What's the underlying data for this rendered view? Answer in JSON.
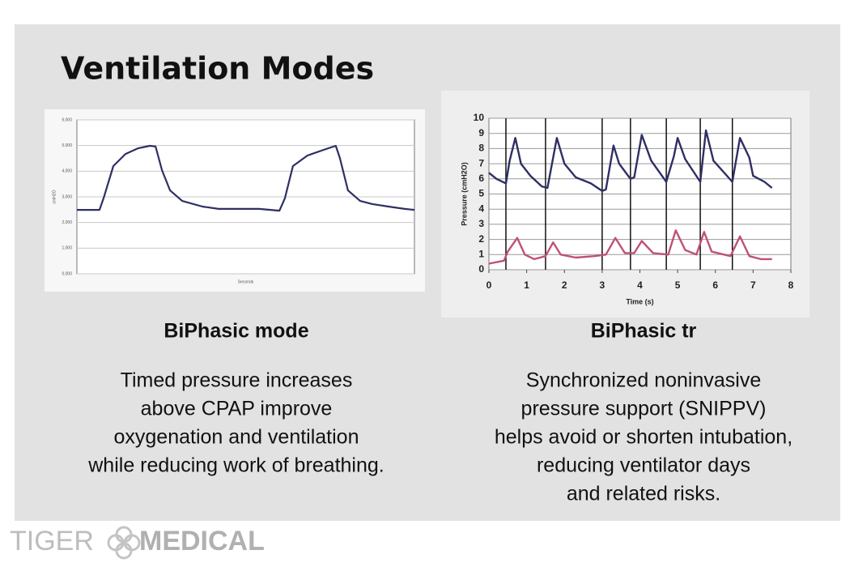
{
  "slide": {
    "title": "Ventilation Modes",
    "panels": [
      {
        "heading": "BiPhasic mode",
        "lines": [
          "Timed pressure increases",
          "above CPAP improve",
          "oxygenation and ventilation",
          "while reducing work of breathing."
        ]
      },
      {
        "heading": "BiPhasic tr",
        "lines": [
          "Synchronized noninvasive",
          "pressure support (SNIPPV)",
          "helps avoid or shorten intubation,",
          "reducing ventilator days",
          "and related risks."
        ]
      }
    ],
    "logo": {
      "left": "TIGER",
      "right": "MEDICAL"
    }
  },
  "chart_data": [
    {
      "type": "line",
      "xlabel": "Seconds",
      "ylabel": "cmH2O",
      "ylim": [
        0,
        6
      ],
      "yticks": [
        {
          "value": 0,
          "label": "0,000"
        },
        {
          "value": 1,
          "label": "1,000"
        },
        {
          "value": 2,
          "label": "2,000"
        },
        {
          "value": 3,
          "label": "3,000"
        },
        {
          "value": 4,
          "label": "4,000"
        },
        {
          "value": 5,
          "label": "5,000"
        },
        {
          "value": 6,
          "label": "6,000"
        }
      ],
      "xlim": [
        0,
        100
      ],
      "grid": true,
      "x": [
        0,
        6.7,
        7.9,
        10.8,
        14.4,
        18,
        21.6,
        23.3,
        25.2,
        27.6,
        31.2,
        37.2,
        42,
        49.2,
        54,
        60,
        61.6,
        64,
        68.3,
        73.1,
        76.7,
        77.9,
        80.3,
        83.9,
        87.5,
        92.3,
        97.1,
        100
      ],
      "series": [
        {
          "color": "#2e2f63",
          "values": [
            2.49,
            2.49,
            2.94,
            4.2,
            4.67,
            4.89,
            4.99,
            4.96,
            4.04,
            3.25,
            2.84,
            2.62,
            2.53,
            2.53,
            2.53,
            2.46,
            2.94,
            4.2,
            4.61,
            4.83,
            4.99,
            4.52,
            3.25,
            2.84,
            2.72,
            2.62,
            2.53,
            2.49
          ]
        }
      ]
    },
    {
      "type": "line",
      "xlabel": "Time (s)",
      "ylabel": "Pressure (cmH2O)",
      "xlim": [
        0,
        8
      ],
      "xticks": [
        0,
        1,
        2,
        3,
        4,
        5,
        6,
        7,
        8
      ],
      "ylim": [
        0,
        10
      ],
      "yticks": [
        0,
        1,
        2,
        3,
        4,
        5,
        6,
        7,
        8,
        9,
        10
      ],
      "grid": true,
      "vlines": [
        0.45,
        1.5,
        3.0,
        3.75,
        4.7,
        5.6,
        6.45
      ],
      "series": [
        {
          "color": "#2e2f63",
          "x": [
            0,
            0.2,
            0.45,
            0.55,
            0.7,
            0.85,
            1.1,
            1.4,
            1.55,
            1.8,
            2,
            2.3,
            2.7,
            3.0,
            3.1,
            3.3,
            3.45,
            3.75,
            3.85,
            4.05,
            4.3,
            4.7,
            4.9,
            5.0,
            5.2,
            5.6,
            5.75,
            5.95,
            6.45,
            6.65,
            6.9,
            7.0,
            7.3,
            7.5
          ],
          "values": [
            6.4,
            6,
            5.7,
            7.2,
            8.7,
            7,
            6.2,
            5.5,
            5.4,
            8.7,
            7,
            6.1,
            5.7,
            5.2,
            5.3,
            8.2,
            7,
            6,
            6.1,
            8.9,
            7.2,
            5.8,
            7.5,
            8.7,
            7.3,
            5.8,
            9.2,
            7.2,
            5.8,
            8.7,
            7.4,
            6.2,
            5.8,
            5.4
          ]
        },
        {
          "color": "#c0507a",
          "x": [
            0,
            0.4,
            0.5,
            0.75,
            0.95,
            1.2,
            1.5,
            1.7,
            1.9,
            2.3,
            2.8,
            3.1,
            3.35,
            3.6,
            3.85,
            4.05,
            4.35,
            4.75,
            4.95,
            5.2,
            5.5,
            5.7,
            5.9,
            6.4,
            6.65,
            6.9,
            7.2,
            7.5
          ],
          "values": [
            0.4,
            0.6,
            1.2,
            2.1,
            1,
            0.7,
            0.9,
            1.8,
            1,
            0.8,
            0.9,
            1.0,
            2.1,
            1.1,
            1.1,
            1.9,
            1.1,
            1.0,
            2.6,
            1.3,
            1.0,
            2.5,
            1.2,
            0.9,
            2.2,
            0.9,
            0.7,
            0.7
          ]
        }
      ]
    }
  ]
}
